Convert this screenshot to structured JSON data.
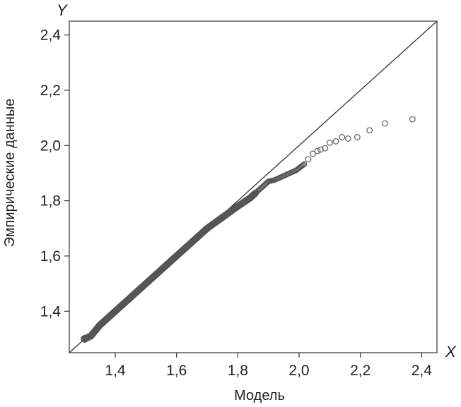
{
  "chart_data": {
    "type": "scatter",
    "title": "",
    "xlabel": "Модель",
    "ylabel": "Эмпирические данные",
    "x_axis_letter": "X",
    "y_axis_letter": "Y",
    "xlim": [
      1.25,
      2.45
    ],
    "ylim": [
      1.25,
      2.45
    ],
    "x_ticks": [
      1.4,
      1.6,
      1.8,
      2.0,
      2.2,
      2.4
    ],
    "y_ticks": [
      1.4,
      1.6,
      1.8,
      2.0,
      2.2,
      2.4
    ],
    "x_tick_labels": [
      "1,4",
      "1,6",
      "1,8",
      "2,0",
      "2,2",
      "2,4"
    ],
    "y_tick_labels": [
      "1,4",
      "1,6",
      "1,8",
      "2,0",
      "2,2",
      "2,4"
    ],
    "grid": false,
    "reference_line": {
      "from": [
        1.25,
        1.25
      ],
      "to": [
        2.45,
        2.45
      ]
    },
    "series": [
      {
        "marker": "open-circle",
        "color": "#555555",
        "dense_segment": {
          "x": [
            1.3,
            1.32,
            1.35,
            1.4,
            1.45,
            1.5,
            1.55,
            1.6,
            1.65,
            1.7,
            1.75,
            1.8,
            1.84,
            1.86,
            1.88,
            1.9,
            1.92,
            1.95,
            1.99,
            2.02
          ],
          "y": [
            1.3,
            1.31,
            1.35,
            1.4,
            1.45,
            1.5,
            1.55,
            1.6,
            1.65,
            1.7,
            1.74,
            1.78,
            1.81,
            1.83,
            1.85,
            1.87,
            1.875,
            1.89,
            1.91,
            1.935
          ]
        },
        "tail_points": {
          "x": [
            2.03,
            2.045,
            2.06,
            2.07,
            2.085,
            2.1,
            2.12,
            2.14,
            2.16,
            2.19,
            2.23,
            2.28,
            2.37
          ],
          "y": [
            1.95,
            1.97,
            1.98,
            1.985,
            1.99,
            2.01,
            2.015,
            2.03,
            2.025,
            2.03,
            2.055,
            2.08,
            2.095
          ]
        }
      }
    ]
  }
}
